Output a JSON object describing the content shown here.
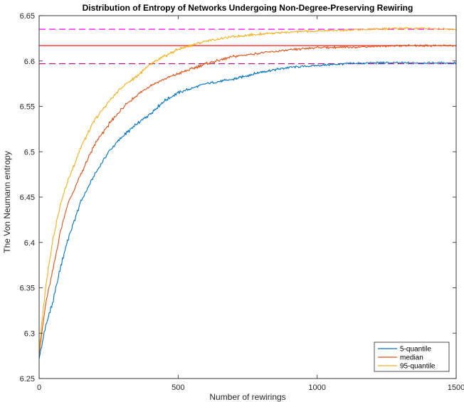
{
  "chart_data": {
    "type": "line",
    "title": "Distribution of Entropy of Networks Undergoing Non-Degree-Preserving Rewiring",
    "xlabel": "Number of rewirings",
    "ylabel": "The Von Neumann entropy",
    "xlim": [
      0,
      1500
    ],
    "ylim": [
      6.25,
      6.65
    ],
    "xticks": [
      0,
      500,
      1000,
      1500
    ],
    "xtick_labels": [
      "0",
      "500",
      "1000",
      "1500"
    ],
    "yticks": [
      6.25,
      6.3,
      6.35,
      6.4,
      6.45,
      6.5,
      6.55,
      6.6,
      6.65
    ],
    "ytick_labels": [
      "6.25",
      "6.3",
      "6.35",
      "6.4",
      "6.45",
      "6.5",
      "6.55",
      "6.6",
      "6.65"
    ],
    "grid": false,
    "legend_position": "bottom-right",
    "series": [
      {
        "name": "5-quantile",
        "color": "#0072BD",
        "x": [
          0,
          25,
          50,
          75,
          100,
          150,
          200,
          250,
          300,
          350,
          400,
          450,
          500,
          600,
          700,
          800,
          900,
          1000,
          1100,
          1200,
          1300,
          1400,
          1500
        ],
        "values": [
          6.272,
          6.31,
          6.335,
          6.37,
          6.4,
          6.445,
          6.475,
          6.5,
          6.517,
          6.53,
          6.542,
          6.556,
          6.565,
          6.575,
          6.58,
          6.588,
          6.593,
          6.595,
          6.597,
          6.598,
          6.598,
          6.598,
          6.598
        ]
      },
      {
        "name": "median",
        "color": "#D95319",
        "x": [
          0,
          25,
          50,
          75,
          100,
          150,
          200,
          250,
          300,
          350,
          400,
          450,
          500,
          600,
          700,
          800,
          900,
          1000,
          1100,
          1200,
          1300,
          1400,
          1500
        ],
        "values": [
          6.278,
          6.335,
          6.37,
          6.41,
          6.44,
          6.475,
          6.508,
          6.53,
          6.548,
          6.562,
          6.573,
          6.58,
          6.586,
          6.597,
          6.605,
          6.609,
          6.612,
          6.615,
          6.615,
          6.616,
          6.617,
          6.617,
          6.617
        ]
      },
      {
        "name": "95-quantile",
        "color": "#EDB120",
        "x": [
          0,
          25,
          50,
          75,
          100,
          150,
          200,
          250,
          300,
          350,
          400,
          450,
          500,
          600,
          700,
          800,
          900,
          1000,
          1100,
          1200,
          1300,
          1400,
          1500
        ],
        "values": [
          6.282,
          6.355,
          6.405,
          6.44,
          6.465,
          6.505,
          6.535,
          6.555,
          6.572,
          6.583,
          6.596,
          6.605,
          6.613,
          6.622,
          6.627,
          6.63,
          6.632,
          6.633,
          6.634,
          6.635,
          6.636,
          6.636,
          6.635
        ]
      }
    ],
    "reference_lines": [
      {
        "value": 6.635,
        "color": "#FF00FF",
        "style": "dashed"
      },
      {
        "value": 6.617,
        "color": "#FF0000",
        "style": "solid"
      },
      {
        "value": 6.597,
        "color": "#C00080",
        "style": "dashed"
      }
    ]
  }
}
